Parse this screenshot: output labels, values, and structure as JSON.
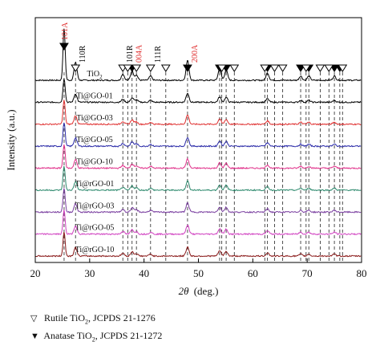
{
  "chart_data": {
    "type": "line",
    "xlabel": "2θ (deg.)",
    "xlabel_parts": {
      "var": "2θ",
      "unit": "(deg.)"
    },
    "ylabel": "Intensity (a.u.)",
    "xlim": [
      20,
      80
    ],
    "xticks": [
      20,
      30,
      40,
      50,
      60,
      70,
      80
    ],
    "stacked": true,
    "series": [
      {
        "name": "TiO2",
        "label_main": "TiO",
        "label_sub": "2",
        "color": "#000000"
      },
      {
        "name": "Ti@GO-01",
        "color": "#000000"
      },
      {
        "name": "Ti@GO-03",
        "color": "#e03030"
      },
      {
        "name": "Ti@GO-05",
        "color": "#2a2aa8"
      },
      {
        "name": "Ti@GO-10",
        "color": "#e0308a"
      },
      {
        "name": "Ti@rGO-01",
        "color": "#2e8a6e"
      },
      {
        "name": "Ti@rGO-03",
        "color": "#7a3fa0"
      },
      {
        "name": "Ti@rGO-05",
        "color": "#d040c0"
      },
      {
        "name": "Ti@rGO-10",
        "color": "#8a1a1a"
      }
    ],
    "peaks": [
      {
        "x": 25.3,
        "h": 1.0
      },
      {
        "x": 27.4,
        "h": 0.35
      },
      {
        "x": 36.1,
        "h": 0.12
      },
      {
        "x": 37.8,
        "h": 0.18
      },
      {
        "x": 38.6,
        "h": 0.1
      },
      {
        "x": 41.2,
        "h": 0.08
      },
      {
        "x": 48.0,
        "h": 0.38
      },
      {
        "x": 53.9,
        "h": 0.22
      },
      {
        "x": 55.1,
        "h": 0.2
      },
      {
        "x": 62.7,
        "h": 0.14
      },
      {
        "x": 68.8,
        "h": 0.08
      },
      {
        "x": 70.3,
        "h": 0.08
      },
      {
        "x": 75.0,
        "h": 0.08
      }
    ],
    "reference_lines": [
      25.3,
      27.4,
      36.1,
      37.0,
      37.8,
      38.6,
      41.2,
      44.0,
      48.0,
      53.9,
      54.3,
      55.1,
      56.6,
      62.2,
      62.7,
      64.0,
      65.5,
      68.8,
      69.8,
      70.3,
      72.4,
      74.0,
      75.0,
      76.0,
      76.5
    ],
    "markers": {
      "anatase": [
        25.3,
        37.8,
        48.0,
        53.9,
        55.1,
        62.7,
        68.8,
        70.3,
        75.0,
        76.0
      ],
      "rutile": [
        27.4,
        36.1,
        37.0,
        38.6,
        41.2,
        44.0,
        54.3,
        56.6,
        62.2,
        64.0,
        65.5,
        69.8,
        72.4,
        74.0,
        76.5
      ]
    },
    "peak_labels": [
      {
        "x": 25.3,
        "text": "101A",
        "color": "#e03030"
      },
      {
        "x": 27.4,
        "text": "110R",
        "color": "#000000"
      },
      {
        "x": 36.1,
        "text": "101R",
        "color": "#000000"
      },
      {
        "x": 37.8,
        "text": "004A",
        "color": "#e03030"
      },
      {
        "x": 41.2,
        "text": "111R",
        "color": "#000000"
      },
      {
        "x": 48.0,
        "text": "200A",
        "color": "#e03030"
      }
    ]
  },
  "legend": {
    "rutile": {
      "symbol": "▽",
      "text_pre": "Rutile TiO",
      "sub": "2",
      "text_post": ", JCPDS 21-1276"
    },
    "anatase": {
      "symbol": "▼",
      "text_pre": "Anatase TiO",
      "sub": "2",
      "text_post": ", JCPDS 21-1272"
    }
  }
}
